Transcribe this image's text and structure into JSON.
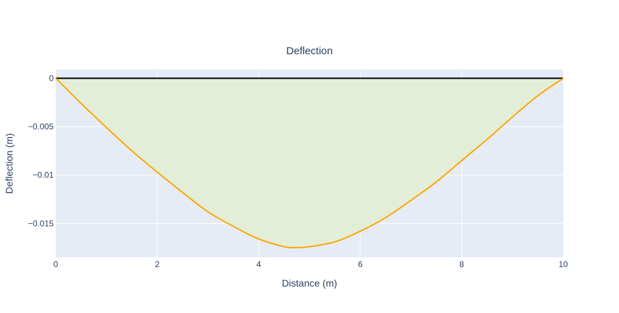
{
  "chart_data": {
    "type": "area",
    "title": "Deflection",
    "xlabel": "Distance (m)",
    "ylabel": "Deflection (m)",
    "xlim": [
      0,
      10
    ],
    "ylim": [
      -0.0185,
      0.0009
    ],
    "xticks": [
      0,
      2,
      4,
      6,
      8,
      10
    ],
    "xtick_labels": [
      "0",
      "2",
      "4",
      "6",
      "8",
      "10"
    ],
    "yticks": [
      0,
      -0.005,
      -0.01,
      -0.015
    ],
    "ytick_labels": [
      "0",
      "−0.005",
      "−0.01",
      "−0.015"
    ],
    "grid": true,
    "series": [
      {
        "role": "beam",
        "color": "#000000",
        "x": [
          0,
          10
        ],
        "y": [
          0,
          0
        ]
      },
      {
        "role": "deflection",
        "color": "#ffa500",
        "fill_color": "#e3eed8",
        "x": [
          0,
          0.5,
          1,
          1.5,
          2,
          2.5,
          3,
          3.5,
          4,
          4.5,
          4.7,
          5,
          5.5,
          6,
          6.5,
          7,
          7.5,
          8,
          8.5,
          9,
          9.5,
          10
        ],
        "y": [
          0,
          -0.0026,
          -0.0051,
          -0.0075,
          -0.0097,
          -0.0118,
          -0.0138,
          -0.0153,
          -0.0166,
          -0.0174,
          -0.0175,
          -0.0174,
          -0.0169,
          -0.0158,
          -0.0144,
          -0.0126,
          -0.0107,
          -0.0085,
          -0.0063,
          -0.004,
          -0.0018,
          0
        ]
      }
    ]
  }
}
